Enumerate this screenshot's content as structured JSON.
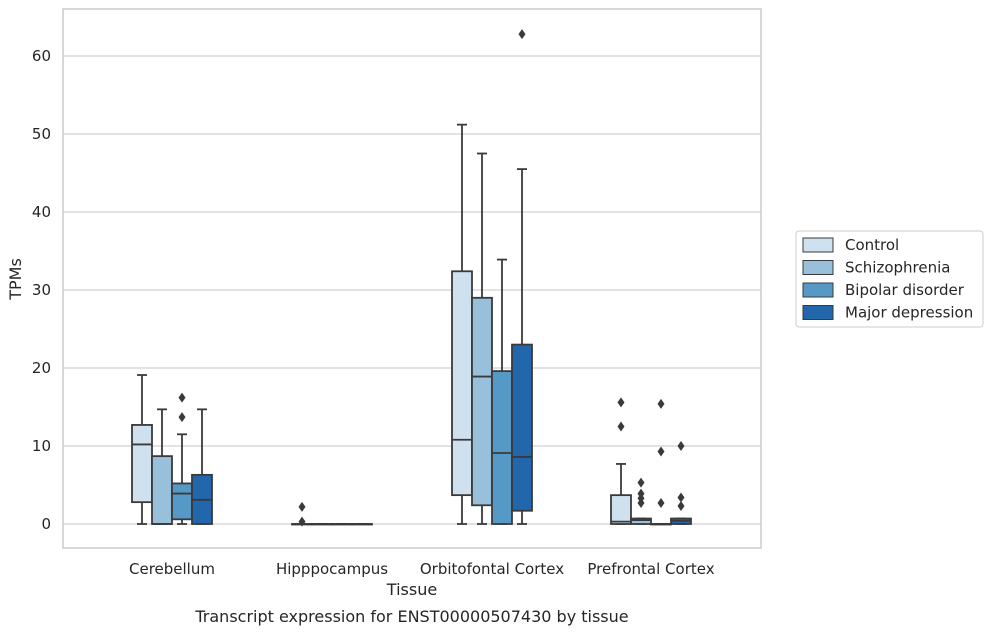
{
  "chart_data": {
    "type": "box",
    "xlabel": "Tissue",
    "ylabel": "TPMs",
    "caption": "Transcript expression for ENST00000507430 by tissue",
    "ylim": [
      -3,
      66
    ],
    "yticks": [
      0,
      10,
      20,
      30,
      40,
      50,
      60
    ],
    "grid": "horizontal",
    "legend_position": "right",
    "categories": [
      "Cerebellum",
      "Hipppocampus",
      "Orbitofontal Cortex",
      "Prefrontal Cortex"
    ],
    "series": [
      {
        "name": "Control",
        "color": "#cfe0ee",
        "boxes": [
          {
            "whislo": 0,
            "q1": 2.8,
            "median": 10.2,
            "q3": 12.7,
            "whishi": 19.1,
            "fliers": []
          },
          {
            "whislo": 0,
            "q1": 0,
            "median": 0,
            "q3": 0,
            "whishi": 0,
            "fliers": [
              2.2,
              0.3
            ]
          },
          {
            "whislo": 0,
            "q1": 3.7,
            "median": 10.8,
            "q3": 32.4,
            "whishi": 51.2,
            "fliers": []
          },
          {
            "whislo": 0,
            "q1": 0,
            "median": 0.3,
            "q3": 3.7,
            "whishi": 7.7,
            "fliers": [
              15.6,
              12.5
            ]
          }
        ]
      },
      {
        "name": "Schizophrenia",
        "color": "#98c0da",
        "boxes": [
          {
            "whislo": 0,
            "q1": 0,
            "median": 0,
            "q3": 8.7,
            "whishi": 14.7,
            "fliers": []
          },
          {
            "whislo": 0,
            "q1": 0,
            "median": 0,
            "q3": 0,
            "whishi": 0,
            "fliers": []
          },
          {
            "whislo": 0,
            "q1": 2.4,
            "median": 18.9,
            "q3": 29.0,
            "whishi": 47.5,
            "fliers": []
          },
          {
            "whislo": 0,
            "q1": 0,
            "median": 0.5,
            "q3": 0.7,
            "whishi": 0.7,
            "fliers": [
              5.3,
              3.9,
              3.3,
              2.7
            ]
          }
        ]
      },
      {
        "name": "Bipolar disorder",
        "color": "#5799c6",
        "boxes": [
          {
            "whislo": 0,
            "q1": 0.6,
            "median": 3.9,
            "q3": 5.2,
            "whishi": 11.5,
            "fliers": [
              16.2,
              13.7
            ]
          },
          {
            "whislo": 0,
            "q1": 0,
            "median": 0,
            "q3": 0,
            "whishi": 0,
            "fliers": []
          },
          {
            "whislo": 0,
            "q1": 0,
            "median": 9.1,
            "q3": 19.6,
            "whishi": 33.9,
            "fliers": []
          },
          {
            "whislo": 0,
            "q1": 0,
            "median": 0,
            "q3": 0,
            "whishi": 0,
            "fliers": [
              15.4,
              9.3,
              2.7
            ]
          }
        ]
      },
      {
        "name": "Major depression",
        "color": "#2266ac",
        "boxes": [
          {
            "whislo": 0,
            "q1": 0,
            "median": 3.1,
            "q3": 6.3,
            "whishi": 14.7,
            "fliers": []
          },
          {
            "whislo": 0,
            "q1": 0,
            "median": 0,
            "q3": 0,
            "whishi": 0,
            "fliers": []
          },
          {
            "whislo": 0,
            "q1": 1.7,
            "median": 8.6,
            "q3": 23.0,
            "whishi": 45.5,
            "fliers": [
              62.8
            ]
          },
          {
            "whislo": 0,
            "q1": 0,
            "median": 0.4,
            "q3": 0.7,
            "whishi": 0.7,
            "fliers": [
              10.0,
              3.4,
              2.3
            ]
          }
        ]
      }
    ]
  }
}
